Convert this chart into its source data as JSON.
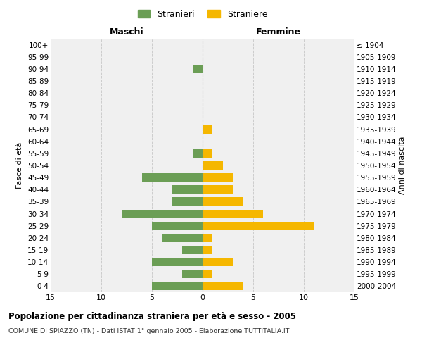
{
  "age_groups": [
    "100+",
    "95-99",
    "90-94",
    "85-89",
    "80-84",
    "75-79",
    "70-74",
    "65-69",
    "60-64",
    "55-59",
    "50-54",
    "45-49",
    "40-44",
    "35-39",
    "30-34",
    "25-29",
    "20-24",
    "15-19",
    "10-14",
    "5-9",
    "0-4"
  ],
  "birth_years": [
    "≤ 1904",
    "1905-1909",
    "1910-1914",
    "1915-1919",
    "1920-1924",
    "1925-1929",
    "1930-1934",
    "1935-1939",
    "1940-1944",
    "1945-1949",
    "1950-1954",
    "1955-1959",
    "1960-1964",
    "1965-1969",
    "1970-1974",
    "1975-1979",
    "1980-1984",
    "1985-1989",
    "1990-1994",
    "1995-1999",
    "2000-2004"
  ],
  "maschi": [
    0,
    0,
    1,
    0,
    0,
    0,
    0,
    0,
    0,
    1,
    0,
    6,
    3,
    3,
    8,
    5,
    4,
    2,
    5,
    2,
    5
  ],
  "femmine": [
    0,
    0,
    0,
    0,
    0,
    0,
    0,
    1,
    0,
    1,
    2,
    3,
    3,
    4,
    6,
    11,
    1,
    1,
    3,
    1,
    4
  ],
  "maschi_color": "#6b9e55",
  "femmine_color": "#f5b700",
  "background_color": "#f0f0f0",
  "grid_color": "#cccccc",
  "title": "Popolazione per cittadinanza straniera per età e sesso - 2005",
  "subtitle": "COMUNE DI SPIAZZO (TN) - Dati ISTAT 1° gennaio 2005 - Elaborazione TUTTITALIA.IT",
  "xlabel_left": "Maschi",
  "xlabel_right": "Femmine",
  "ylabel_left": "Fasce di età",
  "ylabel_right": "Anni di nascita",
  "legend_stranieri": "Stranieri",
  "legend_straniere": "Straniere",
  "xlim": 15
}
